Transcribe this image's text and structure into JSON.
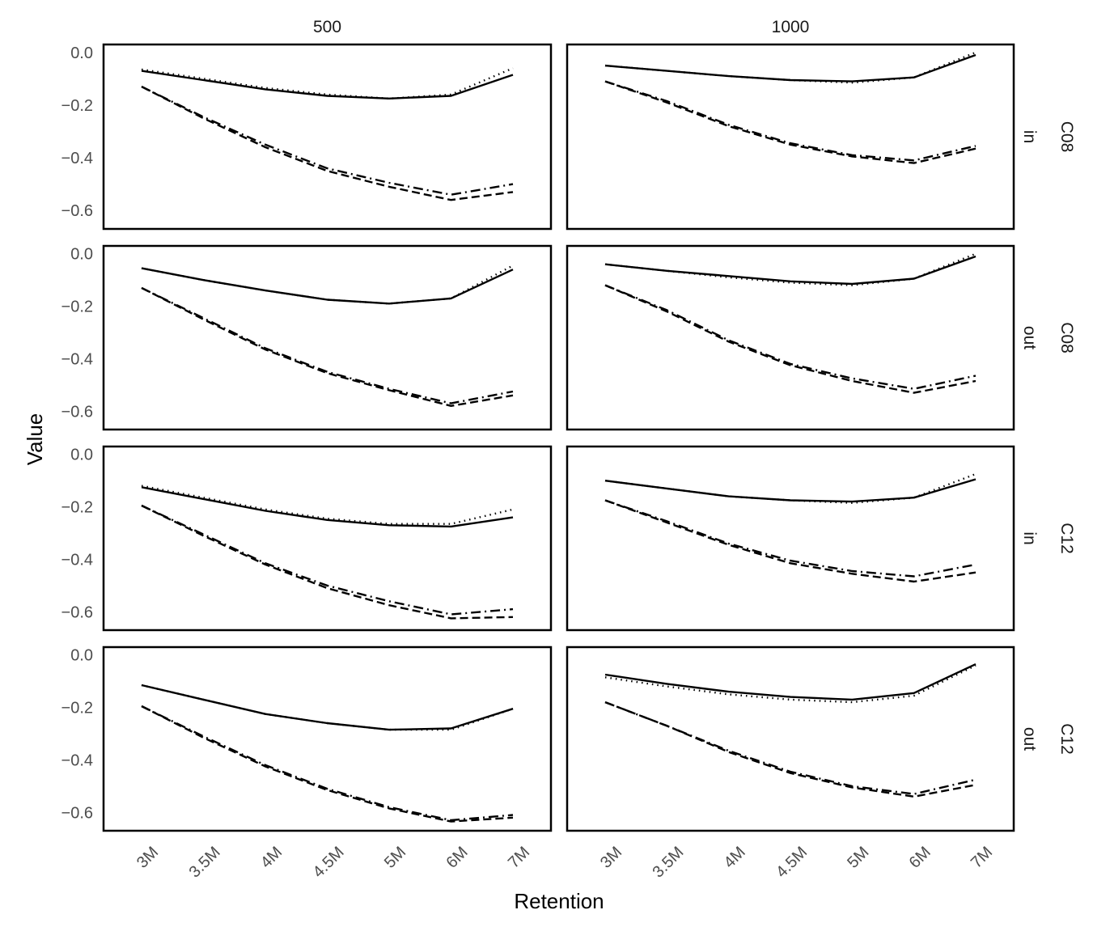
{
  "chart_data": {
    "type": "line",
    "xlabel": "Retention",
    "ylabel": "Value",
    "x_categories": [
      "3M",
      "3.5M",
      "4M",
      "4.5M",
      "5M",
      "6M",
      "7M"
    ],
    "yticks": [
      "0.0",
      "−0.2",
      "−0.4",
      "−0.6"
    ],
    "ylim": [
      -0.67,
      0.03
    ],
    "columns": [
      "500",
      "1000"
    ],
    "rows": [
      {
        "type": "C08",
        "dir": "in"
      },
      {
        "type": "C08",
        "dir": "out"
      },
      {
        "type": "C12",
        "dir": "in"
      },
      {
        "type": "C12",
        "dir": "out"
      }
    ],
    "line_styles": [
      "solid",
      "dotted",
      "dashed",
      "dashdot"
    ],
    "panels": [
      {
        "row": 0,
        "col": 0,
        "series": [
          {
            "style": "solid",
            "values": [
              -0.07,
              -0.105,
              -0.14,
              -0.165,
              -0.175,
              -0.165,
              -0.085
            ]
          },
          {
            "style": "dotted",
            "values": [
              -0.065,
              -0.1,
              -0.135,
              -0.16,
              -0.175,
              -0.16,
              -0.06
            ]
          },
          {
            "style": "dashed",
            "values": [
              -0.13,
              -0.25,
              -0.36,
              -0.45,
              -0.51,
              -0.56,
              -0.53
            ]
          },
          {
            "style": "dashdot",
            "values": [
              -0.13,
              -0.245,
              -0.35,
              -0.44,
              -0.495,
              -0.54,
              -0.5
            ]
          }
        ]
      },
      {
        "row": 0,
        "col": 1,
        "series": [
          {
            "style": "solid",
            "values": [
              -0.05,
              -0.07,
              -0.09,
              -0.105,
              -0.11,
              -0.095,
              -0.01
            ]
          },
          {
            "style": "dotted",
            "values": [
              -0.05,
              -0.07,
              -0.09,
              -0.105,
              -0.115,
              -0.095,
              0.0
            ]
          },
          {
            "style": "dashed",
            "values": [
              -0.11,
              -0.19,
              -0.28,
              -0.35,
              -0.395,
              -0.42,
              -0.365
            ]
          },
          {
            "style": "dashdot",
            "values": [
              -0.11,
              -0.185,
              -0.275,
              -0.345,
              -0.39,
              -0.41,
              -0.355
            ]
          }
        ]
      },
      {
        "row": 1,
        "col": 0,
        "series": [
          {
            "style": "solid",
            "values": [
              -0.055,
              -0.1,
              -0.14,
              -0.175,
              -0.19,
              -0.17,
              -0.06
            ]
          },
          {
            "style": "dotted",
            "values": [
              -0.055,
              -0.1,
              -0.14,
              -0.175,
              -0.19,
              -0.17,
              -0.045
            ]
          },
          {
            "style": "dashed",
            "values": [
              -0.13,
              -0.25,
              -0.365,
              -0.455,
              -0.52,
              -0.58,
              -0.54
            ]
          },
          {
            "style": "dashdot",
            "values": [
              -0.13,
              -0.245,
              -0.36,
              -0.45,
              -0.515,
              -0.57,
              -0.525
            ]
          }
        ]
      },
      {
        "row": 1,
        "col": 1,
        "series": [
          {
            "style": "solid",
            "values": [
              -0.04,
              -0.065,
              -0.085,
              -0.105,
              -0.115,
              -0.095,
              -0.01
            ]
          },
          {
            "style": "dotted",
            "values": [
              -0.04,
              -0.065,
              -0.09,
              -0.11,
              -0.12,
              -0.095,
              0.0
            ]
          },
          {
            "style": "dashed",
            "values": [
              -0.12,
              -0.22,
              -0.335,
              -0.425,
              -0.485,
              -0.53,
              -0.485
            ]
          },
          {
            "style": "dashdot",
            "values": [
              -0.12,
              -0.215,
              -0.33,
              -0.42,
              -0.475,
              -0.515,
              -0.465
            ]
          }
        ]
      },
      {
        "row": 2,
        "col": 0,
        "series": [
          {
            "style": "solid",
            "values": [
              -0.125,
              -0.17,
              -0.215,
              -0.25,
              -0.27,
              -0.275,
              -0.24
            ]
          },
          {
            "style": "dotted",
            "values": [
              -0.12,
              -0.165,
              -0.21,
              -0.245,
              -0.265,
              -0.265,
              -0.21
            ]
          },
          {
            "style": "dashed",
            "values": [
              -0.195,
              -0.31,
              -0.42,
              -0.51,
              -0.575,
              -0.625,
              -0.62
            ]
          },
          {
            "style": "dashdot",
            "values": [
              -0.195,
              -0.305,
              -0.415,
              -0.5,
              -0.56,
              -0.61,
              -0.59
            ]
          }
        ]
      },
      {
        "row": 2,
        "col": 1,
        "series": [
          {
            "style": "solid",
            "values": [
              -0.1,
              -0.13,
              -0.16,
              -0.175,
              -0.18,
              -0.165,
              -0.095
            ]
          },
          {
            "style": "dotted",
            "values": [
              -0.1,
              -0.13,
              -0.16,
              -0.175,
              -0.185,
              -0.165,
              -0.075
            ]
          },
          {
            "style": "dashed",
            "values": [
              -0.175,
              -0.26,
              -0.345,
              -0.415,
              -0.455,
              -0.485,
              -0.45
            ]
          },
          {
            "style": "dashdot",
            "values": [
              -0.175,
              -0.255,
              -0.34,
              -0.405,
              -0.445,
              -0.465,
              -0.42
            ]
          }
        ]
      },
      {
        "row": 3,
        "col": 0,
        "series": [
          {
            "style": "solid",
            "values": [
              -0.115,
              -0.17,
              -0.225,
              -0.26,
              -0.285,
              -0.28,
              -0.205
            ]
          },
          {
            "style": "dotted",
            "values": [
              -0.115,
              -0.17,
              -0.225,
              -0.26,
              -0.285,
              -0.285,
              -0.205
            ]
          },
          {
            "style": "dashed",
            "values": [
              -0.195,
              -0.315,
              -0.425,
              -0.515,
              -0.585,
              -0.635,
              -0.62
            ]
          },
          {
            "style": "dashdot",
            "values": [
              -0.195,
              -0.31,
              -0.42,
              -0.51,
              -0.58,
              -0.63,
              -0.61
            ]
          }
        ]
      },
      {
        "row": 3,
        "col": 1,
        "series": [
          {
            "style": "solid",
            "values": [
              -0.075,
              -0.11,
              -0.14,
              -0.16,
              -0.17,
              -0.145,
              -0.035
            ]
          },
          {
            "style": "dotted",
            "values": [
              -0.085,
              -0.12,
              -0.15,
              -0.17,
              -0.18,
              -0.155,
              -0.04
            ]
          },
          {
            "style": "dashed",
            "values": [
              -0.18,
              -0.27,
              -0.37,
              -0.45,
              -0.505,
              -0.54,
              -0.495
            ]
          },
          {
            "style": "dashdot",
            "values": [
              -0.18,
              -0.27,
              -0.365,
              -0.445,
              -0.5,
              -0.53,
              -0.475
            ]
          }
        ]
      }
    ]
  }
}
